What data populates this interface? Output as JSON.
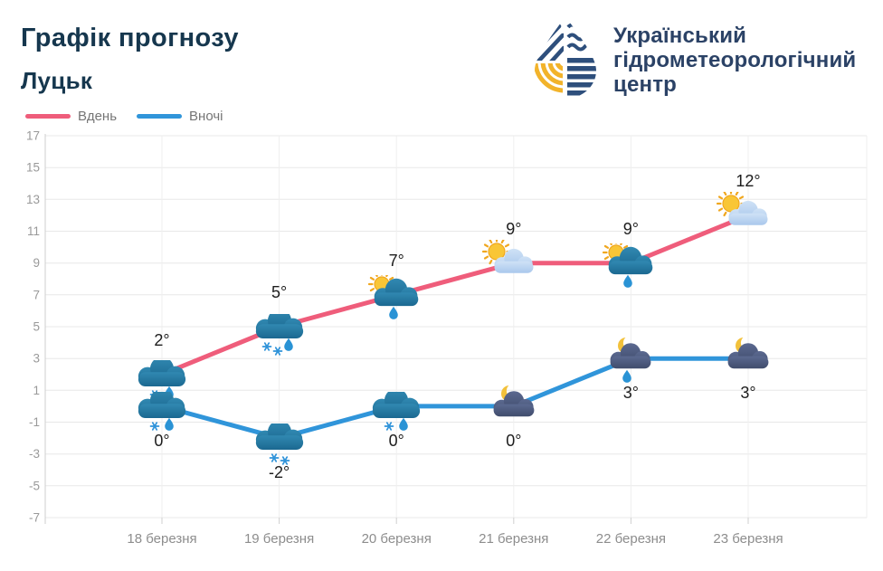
{
  "header": {
    "title": "Графік прогнозу",
    "subtitle": "Луцьк"
  },
  "logo": {
    "line1": "Український",
    "line2": "гідрометеорологічний",
    "line3": "центр"
  },
  "colors": {
    "day_line": "#ef5d7b",
    "night_line": "#3095da",
    "title_text": "#16374e",
    "logo_navy": "#2e4f7c",
    "logo_yellow": "#f2b32b",
    "grid": "#e8e8e8",
    "axis": "#cfcfcf",
    "tick_text": "#999999"
  },
  "chart_data": {
    "type": "line",
    "categories": [
      "18 березня",
      "19 березня",
      "20 березня",
      "21 березня",
      "22 березня",
      "23 березня"
    ],
    "series": [
      {
        "name": "Вдень",
        "color": "#ef5d7b",
        "values": [
          2,
          5,
          7,
          9,
          9,
          12
        ],
        "labels": [
          "2°",
          "5°",
          "7°",
          "9°",
          "9°",
          "12°"
        ],
        "icons": [
          "cloud-snow-rain",
          "cloud-snow2-rain",
          "sun-cloud-rain",
          "sun-lightcloud",
          "sun-cloud-rain",
          "sun-lightcloud"
        ]
      },
      {
        "name": "Вночі",
        "color": "#3095da",
        "values": [
          0,
          -2,
          0,
          0,
          3,
          3
        ],
        "labels": [
          "0°",
          "-2°",
          "0°",
          "0°",
          "3°",
          "3°"
        ],
        "icons": [
          "cloud-snow-rain",
          "cloud-snow",
          "cloud-snow-rain",
          "moon-cloud",
          "moon-cloud-rain",
          "moon-cloud"
        ]
      }
    ],
    "ylim": [
      -7,
      17
    ],
    "yticks": [
      17,
      15,
      13,
      11,
      9,
      7,
      5,
      3,
      1,
      -1,
      -3,
      -5,
      -7
    ],
    "xlabel": "",
    "ylabel": "",
    "grid": true,
    "legend_position": "top-left"
  }
}
